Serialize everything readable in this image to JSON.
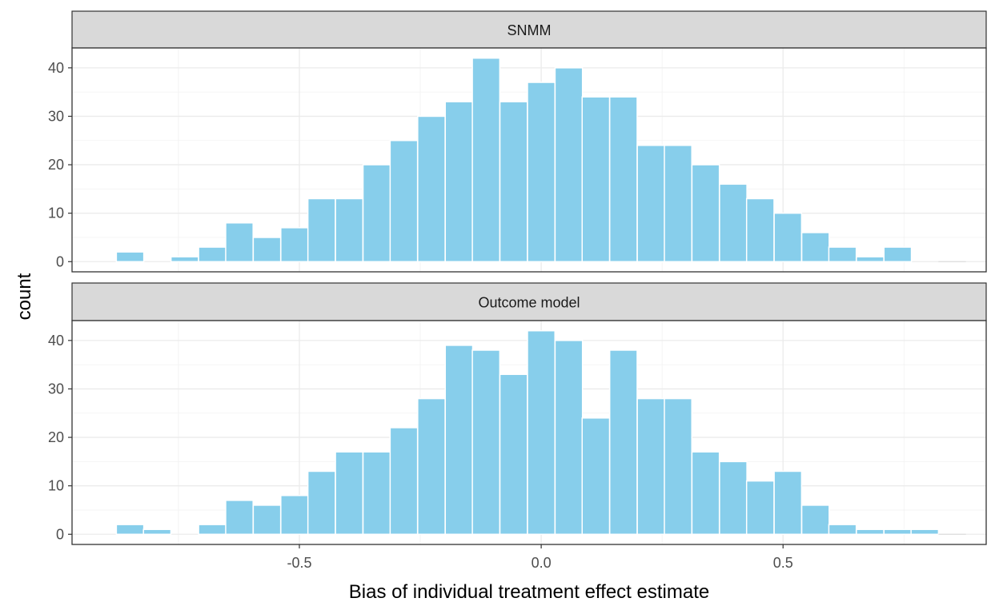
{
  "chart_data": {
    "type": "bar",
    "subtype": "faceted histogram",
    "xlabel": "Bias of individual treatment effect estimate",
    "ylabel": "count",
    "x_ticks": [
      -0.5,
      0.0,
      0.5
    ],
    "x_tick_labels": [
      "-0.5",
      "0.0",
      "0.5"
    ],
    "y_ticks": [
      0,
      10,
      20,
      30,
      40
    ],
    "y_tick_labels": [
      "0",
      "10",
      "20",
      "30",
      "40"
    ],
    "xlim": [
      -0.97,
      0.92
    ],
    "ylim": [
      -2.1,
      44.1
    ],
    "bin_width": 0.0567,
    "bin_centers": [
      -0.85,
      -0.794,
      -0.737,
      -0.68,
      -0.624,
      -0.567,
      -0.51,
      -0.454,
      -0.397,
      -0.34,
      -0.284,
      -0.227,
      -0.17,
      -0.114,
      -0.057,
      0.0,
      0.057,
      0.113,
      0.17,
      0.227,
      0.283,
      0.34,
      0.397,
      0.453,
      0.51,
      0.567,
      0.623,
      0.68,
      0.737,
      0.793
    ],
    "fill_color": "#87CEEB",
    "bar_outline_color": "#ffffff",
    "panels": [
      {
        "name": "SNMM",
        "values": [
          2,
          0,
          1,
          3,
          8,
          5,
          7,
          13,
          13,
          20,
          25,
          30,
          33,
          42,
          33,
          37,
          40,
          34,
          34,
          24,
          24,
          20,
          16,
          13,
          10,
          6,
          3,
          1,
          3,
          0
        ]
      },
      {
        "name": "Outcome model",
        "values": [
          2,
          1,
          0,
          2,
          7,
          6,
          8,
          13,
          17,
          17,
          22,
          28,
          39,
          38,
          33,
          42,
          40,
          24,
          38,
          28,
          28,
          17,
          15,
          11,
          13,
          6,
          2,
          1,
          1,
          1
        ]
      }
    ]
  }
}
